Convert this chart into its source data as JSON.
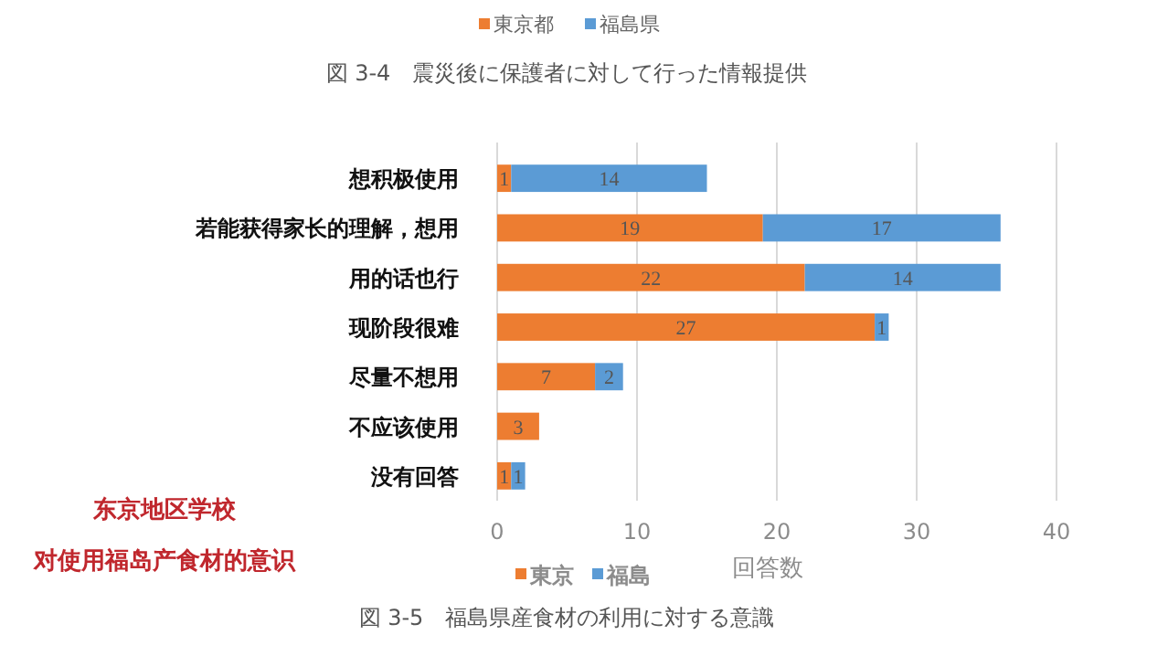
{
  "chart_data": {
    "type": "bar",
    "orientation": "horizontal",
    "stacked": true,
    "title": "东京地区学校",
    "subtitle": "对使用福岛产食材的意识",
    "categories": [
      "想积极使用",
      "若能获得家长的理解，想用",
      "用的话也行",
      "现阶段很难",
      "尽量不想用",
      "不应该使用",
      "没有回答"
    ],
    "series": [
      {
        "name": "東京",
        "color": "#ed7d31",
        "values": [
          1,
          19,
          22,
          27,
          7,
          3,
          1
        ]
      },
      {
        "name": "福島",
        "color": "#5b9bd5",
        "values": [
          14,
          17,
          14,
          1,
          2,
          null,
          1
        ]
      }
    ],
    "xlabel": "回答数",
    "xlim": [
      0,
      40
    ],
    "xticks": [
      0,
      10,
      20,
      30,
      40
    ],
    "grid": "x",
    "legend": "bottom",
    "data_labels": true,
    "annotations": [
      "東京都",
      "福島県",
      "図 3-4　震災後に保護者に対して行った情報提供",
      "図 3-5　福島県産食材の利用に対する意識"
    ]
  }
}
